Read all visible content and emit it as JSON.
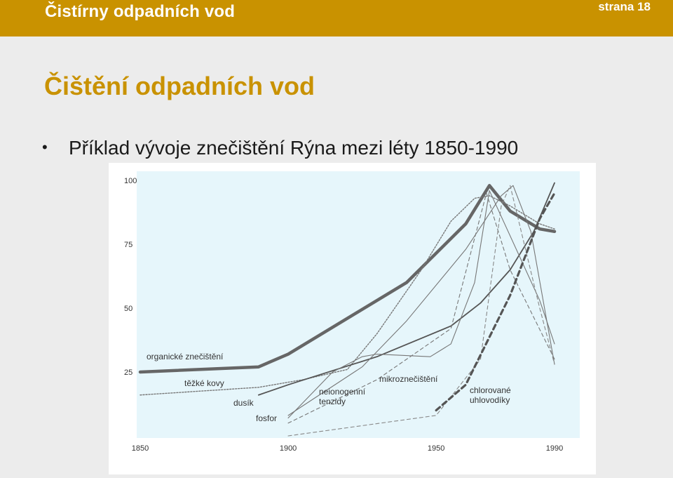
{
  "header": {
    "title": "Čistírny odpadních vod",
    "page": "strana 18"
  },
  "slide": {
    "heading": "Čištění odpadních vod",
    "bullet": "Příklad vývoje znečištění Rýna mezi léty 1850-1990"
  },
  "colors": {
    "accent": "#c99200",
    "plot_bg": "#e6f6fb",
    "ink": "#555555"
  },
  "chart_data": {
    "type": "line",
    "title": "",
    "xlabel": "",
    "ylabel": "",
    "xlim": [
      1850,
      1990
    ],
    "ylim": [
      0,
      100
    ],
    "x_ticks": [
      1850,
      1900,
      1950,
      1990
    ],
    "y_ticks": [
      25,
      50,
      75,
      100
    ],
    "grid": false,
    "series": [
      {
        "name": "organické znečištění",
        "x": [
          1850,
          1890,
          1900,
          1940,
          1960,
          1968,
          1975,
          1985,
          1990
        ],
        "y": [
          25,
          27,
          32,
          60,
          83,
          98,
          88,
          81,
          80
        ]
      },
      {
        "name": "těžké kovy",
        "x": [
          1850,
          1890,
          1905,
          1920,
          1930,
          1945,
          1955,
          1963,
          1968,
          1975,
          1985,
          1990
        ],
        "y": [
          16,
          19,
          22,
          26,
          40,
          65,
          84,
          93,
          94,
          90,
          83,
          81
        ]
      },
      {
        "name": "dusík",
        "x": [
          1890,
          1900,
          1930,
          1955,
          1965,
          1975,
          1983,
          1990
        ],
        "y": [
          16,
          20,
          31,
          43,
          52,
          65,
          80,
          99
        ]
      },
      {
        "name": "fosfor",
        "x": [
          1900,
          1925,
          1940,
          1960,
          1972,
          1976,
          1982,
          1990
        ],
        "y": [
          8,
          27,
          45,
          73,
          94,
          98,
          80,
          28
        ]
      },
      {
        "name": "neionogenní tenzidy",
        "x": [
          1900,
          1915,
          1925,
          1930,
          1948,
          1955,
          1963,
          1968,
          1985,
          1990
        ],
        "y": [
          7,
          25,
          31,
          32,
          31,
          36,
          60,
          96,
          53,
          36
        ]
      },
      {
        "name": "mikroznečištění",
        "x": [
          1900,
          1930,
          1955,
          1962,
          1967,
          1975,
          1990
        ],
        "y": [
          5,
          22,
          42,
          73,
          95,
          65,
          30
        ]
      },
      {
        "name": "chlorované uhlovodíky",
        "x": [
          1900,
          1950,
          1965,
          1972,
          1975,
          1985,
          1990
        ],
        "y": [
          0,
          8,
          30,
          90,
          98,
          50,
          28
        ]
      },
      {
        "name": "",
        "x": [
          1950,
          1960,
          1975,
          1985,
          1990
        ],
        "y": [
          10,
          20,
          55,
          85,
          95
        ]
      }
    ],
    "annotations": [
      {
        "text": "organické znečištění"
      },
      {
        "text": "těžké kovy"
      },
      {
        "text": "dusík"
      },
      {
        "text": "fosfor"
      },
      {
        "text": "neionogenní tenzidy"
      },
      {
        "text": "mikroznečištění"
      },
      {
        "text": "chlorované uhlovodíky"
      }
    ]
  }
}
